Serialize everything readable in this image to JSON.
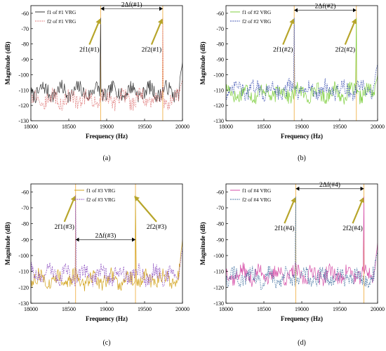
{
  "chart_data": [
    {
      "type": "line",
      "caption": "(a)",
      "xlabel": "Frequency (Hz)",
      "ylabel": "Magnitude (dB)",
      "xlim": [
        18000,
        20000
      ],
      "ylim": [
        -130,
        -55
      ],
      "xticks": [
        18000,
        18500,
        19000,
        19500,
        20000
      ],
      "yticks": [
        -60,
        -70,
        -80,
        -90,
        -100,
        -110,
        -120,
        -130
      ],
      "legend_position": "top-left",
      "series": [
        {
          "name": "f1 of #1 VRG",
          "color": "#333333",
          "dash": false,
          "peaks": [
            {
              "x": 18920,
              "y": -63
            }
          ],
          "base": -111,
          "amp": 6,
          "end_y": -92
        },
        {
          "name": "f2 of #1 VRG",
          "color": "#e07a7a",
          "dash": true,
          "peaks": [
            {
              "x": 19740,
              "y": -63
            }
          ],
          "base": -116,
          "amp": 6,
          "end_y": -103
        }
      ],
      "annotations": {
        "delta_label": "2Δf(#1)",
        "delta_from": 18920,
        "delta_to": 19740,
        "delta_y": -57,
        "peak1_label": "2f1(#1)",
        "peak1_x": 18920,
        "peak1_y": -63,
        "peak2_label": "2f2(#1)",
        "peak2_x": 19740,
        "peak2_y": -63
      }
    },
    {
      "type": "line",
      "caption": "(b)",
      "xlabel": "Frequency (Hz)",
      "ylabel": "Magnitude (dB)",
      "xlim": [
        18000,
        20000
      ],
      "ylim": [
        -130,
        -55
      ],
      "xticks": [
        18000,
        18500,
        19000,
        19500,
        20000
      ],
      "yticks": [
        -60,
        -70,
        -80,
        -90,
        -100,
        -110,
        -120,
        -130
      ],
      "legend_position": "top-left",
      "series": [
        {
          "name": "f1 of #2 VRG",
          "color": "#7fcf3f",
          "dash": false,
          "peaks": [
            {
              "x": 19720,
              "y": -63
            }
          ],
          "base": -112,
          "amp": 6,
          "end_y": -100
        },
        {
          "name": "f2 of #2 VRG",
          "color": "#3a4fb0",
          "dash": true,
          "peaks": [
            {
              "x": 18900,
              "y": -63
            }
          ],
          "base": -110,
          "amp": 6,
          "end_y": -93
        }
      ],
      "annotations": {
        "delta_label": "2Δf(#2)",
        "delta_from": 18900,
        "delta_to": 19720,
        "delta_y": -58,
        "peak1_label": "2f1(#2)",
        "peak1_x": 18900,
        "peak1_y": -63,
        "peak2_label": "2f2(#2)",
        "peak2_x": 19720,
        "peak2_y": -63
      }
    },
    {
      "type": "line",
      "caption": "(c)",
      "xlabel": "Frequency (Hz)",
      "ylabel": "Magnitude (dB)",
      "xlim": [
        18000,
        20000
      ],
      "ylim": [
        -130,
        -55
      ],
      "xticks": [
        18000,
        18500,
        19000,
        19500,
        20000
      ],
      "yticks": [
        -60,
        -70,
        -80,
        -90,
        -100,
        -110,
        -120,
        -130
      ],
      "legend_position": "top-center",
      "series": [
        {
          "name": "f1 of #3 VRG",
          "color": "#d2a31e",
          "dash": false,
          "peaks": [
            {
              "x": 19380,
              "y": -62
            }
          ],
          "base": -115,
          "amp": 6,
          "end_y": -90
        },
        {
          "name": "f2 of #3 VRG",
          "color": "#8a4bbf",
          "dash": true,
          "peaks": [
            {
              "x": 18590,
              "y": -62
            }
          ],
          "base": -112,
          "amp": 6,
          "end_y": -95
        }
      ],
      "annotations": {
        "delta_label": "2Δf(#3)",
        "delta_from": 18590,
        "delta_to": 19380,
        "delta_y": -90,
        "peak1_label": "2f1(#3)",
        "peak1_x": 18590,
        "peak1_y": -62,
        "peak2_label": "2f2(#3)",
        "peak2_x": 19380,
        "peak2_y": -62
      }
    },
    {
      "type": "line",
      "caption": "(d)",
      "xlabel": "Frequency (Hz)",
      "ylabel": "Magnitude (dB)",
      "xlim": [
        18000,
        20000
      ],
      "ylim": [
        -130,
        -55
      ],
      "xticks": [
        18000,
        18500,
        19000,
        19500,
        20000
      ],
      "yticks": [
        -60,
        -70,
        -80,
        -90,
        -100,
        -110,
        -120,
        -130
      ],
      "legend_position": "top-left",
      "series": [
        {
          "name": "f1 of #4 VRG",
          "color": "#d64fa8",
          "dash": false,
          "peaks": [
            {
              "x": 19820,
              "y": -63
            }
          ],
          "base": -112,
          "amp": 6,
          "end_y": -92
        },
        {
          "name": "f2 of #4 VRG",
          "color": "#3f6f9f",
          "dash": true,
          "peaks": [
            {
              "x": 18920,
              "y": -63
            }
          ],
          "base": -114,
          "amp": 6,
          "end_y": -97
        }
      ],
      "annotations": {
        "delta_label": "2Δf(#4)",
        "delta_from": 18920,
        "delta_to": 19820,
        "delta_y": -58,
        "peak1_label": "2f1(#4)",
        "peak1_x": 18920,
        "peak1_y": -63,
        "peak2_label": "2f2(#4)",
        "peak2_x": 19820,
        "peak2_y": -63
      }
    }
  ],
  "colors": {
    "guide_line": "#f0b24a",
    "arrow": "#b7a52a"
  }
}
